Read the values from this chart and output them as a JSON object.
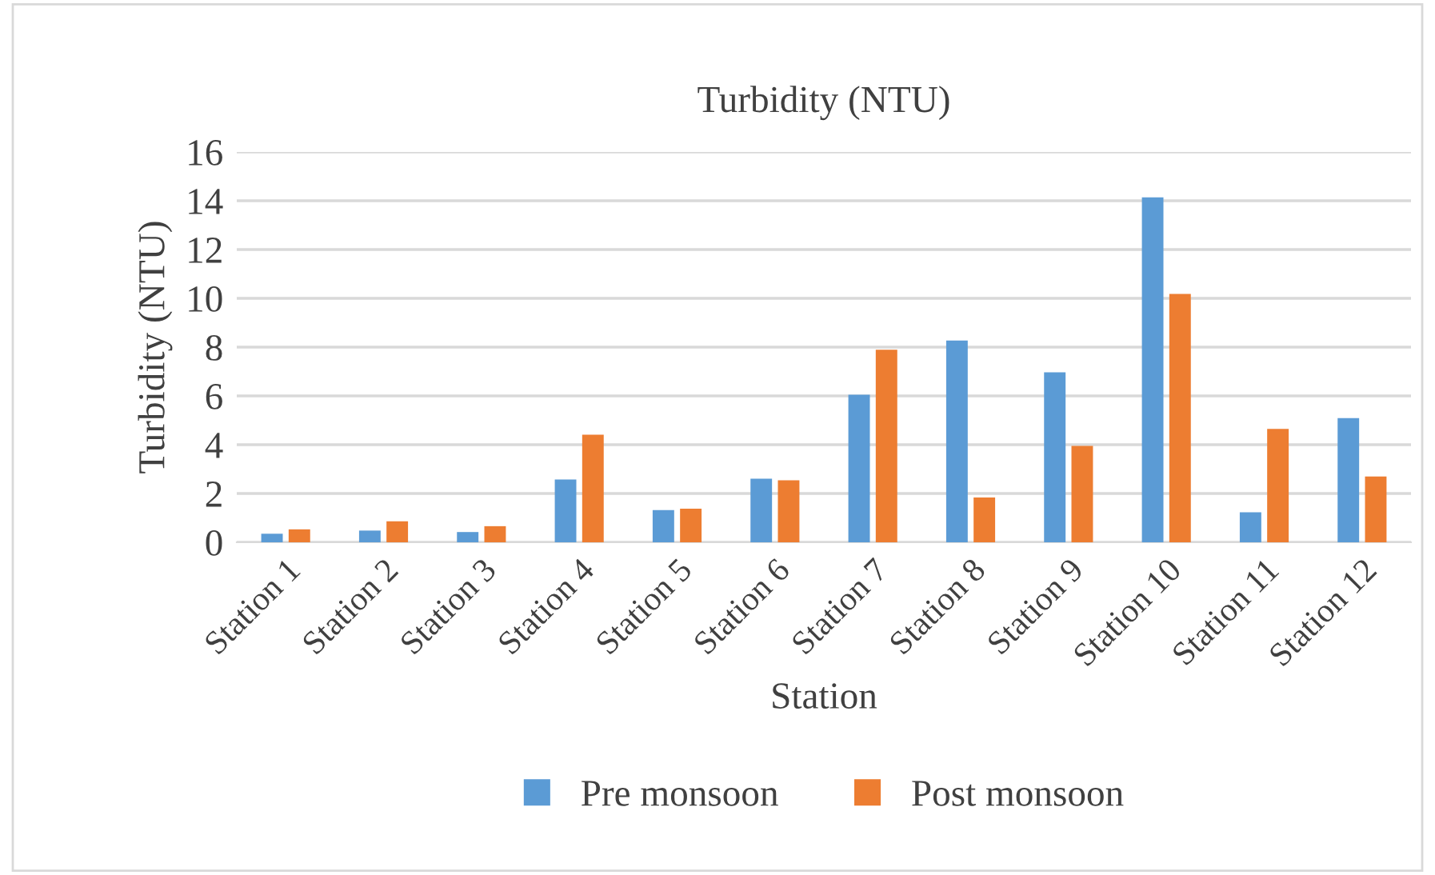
{
  "chart_data": {
    "type": "bar",
    "title": "Turbidity (NTU)",
    "xlabel": "Station",
    "ylabel": "Turbidity (NTU)",
    "categories": [
      "Station 1",
      "Station 2",
      "Station 3",
      "Station 4",
      "Station 5",
      "Station 6",
      "Station 7",
      "Station 8",
      "Station 9",
      "Station 10",
      "Station 11",
      "Station 12"
    ],
    "series": [
      {
        "name": "Pre monsoon",
        "color": "#5b9bd5",
        "values": [
          0.35,
          0.48,
          0.42,
          2.57,
          1.32,
          2.61,
          6.05,
          8.27,
          6.97,
          14.14,
          1.23,
          5.09
        ]
      },
      {
        "name": "Post monsoon",
        "color": "#ed7d31",
        "values": [
          0.53,
          0.86,
          0.66,
          4.41,
          1.38,
          2.54,
          7.89,
          1.84,
          3.95,
          10.18,
          4.65,
          2.7
        ]
      }
    ],
    "ylim": [
      0,
      16
    ],
    "yticks": [
      0,
      2,
      4,
      6,
      8,
      10,
      12,
      14,
      16
    ],
    "grid": "y",
    "legend": "bottom"
  }
}
